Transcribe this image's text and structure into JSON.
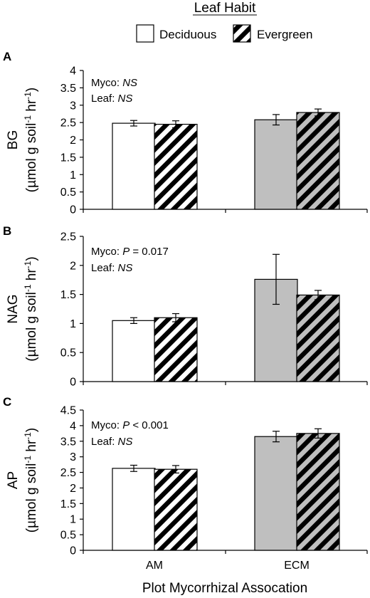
{
  "legend": {
    "title": "Leaf Habit",
    "entries": [
      {
        "label": "Deciduous",
        "pattern": "open"
      },
      {
        "label": "Evergreen",
        "pattern": "hatched"
      }
    ]
  },
  "xlabel": "Plot Mycorrhizal Assocation",
  "colors": {
    "am_fill": "#ffffff",
    "ecm_fill": "#bfbfbf",
    "outline": "#000000",
    "hatch": "#000000"
  },
  "chart_data": [
    {
      "type": "bar",
      "panel": "A",
      "ylabel_main": "BG",
      "ylabel_unit": "(µmol g soil-1 hr-1)",
      "categories": [
        "AM",
        "ECM"
      ],
      "series": [
        {
          "name": "Deciduous",
          "values": [
            2.48,
            2.58
          ],
          "errors": [
            0.08,
            0.15
          ]
        },
        {
          "name": "Evergreen",
          "values": [
            2.45,
            2.79
          ],
          "errors": [
            0.1,
            0.1
          ]
        }
      ],
      "ylim": [
        0,
        4
      ],
      "yticks": [
        "0",
        "0.5",
        "1",
        "1.5",
        "2",
        "2.5",
        "3",
        "3.5",
        "4"
      ],
      "annotations": [
        {
          "prefix": "Myco: ",
          "stat": "NS",
          "suffix": ""
        },
        {
          "prefix": "Leaf: ",
          "stat": "NS",
          "suffix": ""
        }
      ]
    },
    {
      "type": "bar",
      "panel": "B",
      "ylabel_main": "NAG",
      "ylabel_unit": "(µmol g soil-1 hr-1)",
      "categories": [
        "AM",
        "ECM"
      ],
      "series": [
        {
          "name": "Deciduous",
          "values": [
            1.05,
            1.76
          ],
          "errors": [
            0.05,
            0.43
          ]
        },
        {
          "name": "Evergreen",
          "values": [
            1.1,
            1.49
          ],
          "errors": [
            0.07,
            0.08
          ]
        }
      ],
      "ylim": [
        0,
        2.5
      ],
      "yticks": [
        "0",
        "0.5",
        "1",
        "1.5",
        "2",
        "2.5"
      ],
      "annotations": [
        {
          "prefix": "Myco: ",
          "stat": "P",
          "suffix": " = 0.017"
        },
        {
          "prefix": "Leaf: ",
          "stat": "NS",
          "suffix": ""
        }
      ]
    },
    {
      "type": "bar",
      "panel": "C",
      "ylabel_main": "AP",
      "ylabel_unit": "(µmol g soil-1 hr-1)",
      "categories": [
        "AM",
        "ECM"
      ],
      "series": [
        {
          "name": "Deciduous",
          "values": [
            2.63,
            3.65
          ],
          "errors": [
            0.1,
            0.17
          ]
        },
        {
          "name": "Evergreen",
          "values": [
            2.6,
            3.75
          ],
          "errors": [
            0.12,
            0.15
          ]
        }
      ],
      "ylim": [
        0,
        4.5
      ],
      "yticks": [
        "0",
        "0.5",
        "1",
        "1.5",
        "2",
        "2.5",
        "3",
        "3.5",
        "4",
        "4.5"
      ],
      "annotations": [
        {
          "prefix": "Myco: ",
          "stat": "P",
          "suffix": " < 0.001"
        },
        {
          "prefix": "Leaf: ",
          "stat": "NS",
          "suffix": ""
        }
      ]
    }
  ]
}
